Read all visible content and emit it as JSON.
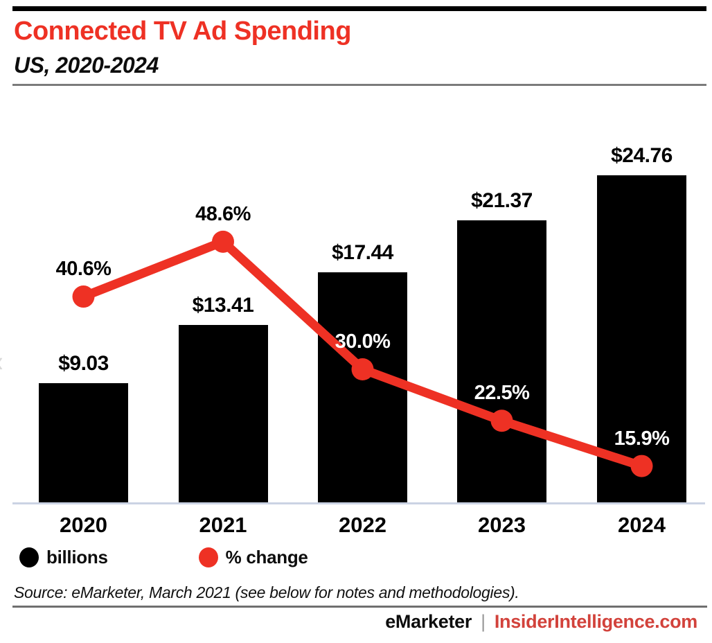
{
  "header": {
    "title": "Connected TV Ad Spending",
    "subtitle": "US, 2020-2024"
  },
  "legend": {
    "bars_label": "billions",
    "line_label": "% change"
  },
  "source_note": "Source: eMarketer, March 2021 (see below for notes and methodologies).",
  "footer": {
    "brand": "eMarketer",
    "separator": "|",
    "site": "InsiderIntelligence.com"
  },
  "colors": {
    "accent_red": "#EE3124",
    "bar_black": "#000000",
    "baseline_gray": "#CBD3E4",
    "footer_link_red": "#D2423B"
  },
  "chart_data": {
    "type": "bar+line",
    "title": "Connected TV Ad Spending",
    "subtitle": "US, 2020-2024",
    "categories": [
      "2020",
      "2021",
      "2022",
      "2023",
      "2024"
    ],
    "series": [
      {
        "name": "billions",
        "type": "bar",
        "values": [
          9.03,
          13.41,
          17.44,
          21.37,
          24.76
        ],
        "labels": [
          "$9.03",
          "$13.41",
          "$17.44",
          "$21.37",
          "$24.76"
        ],
        "color": "#000000",
        "label_colors": [
          "#000000",
          "#000000",
          "#000000",
          "#000000",
          "#000000"
        ]
      },
      {
        "name": "% change",
        "type": "line",
        "values": [
          40.6,
          48.6,
          30.0,
          22.5,
          15.9
        ],
        "labels": [
          "40.6%",
          "48.6%",
          "30.0%",
          "22.5%",
          "15.9%"
        ],
        "color": "#EE3124",
        "label_colors": [
          "#000000",
          "#000000",
          "#FFFFFF",
          "#FFFFFF",
          "#FFFFFF"
        ]
      }
    ],
    "ylim_bars": [
      0,
      25
    ],
    "axis_labels_visible": false,
    "grid": false,
    "legend_position": "bottom-left"
  }
}
